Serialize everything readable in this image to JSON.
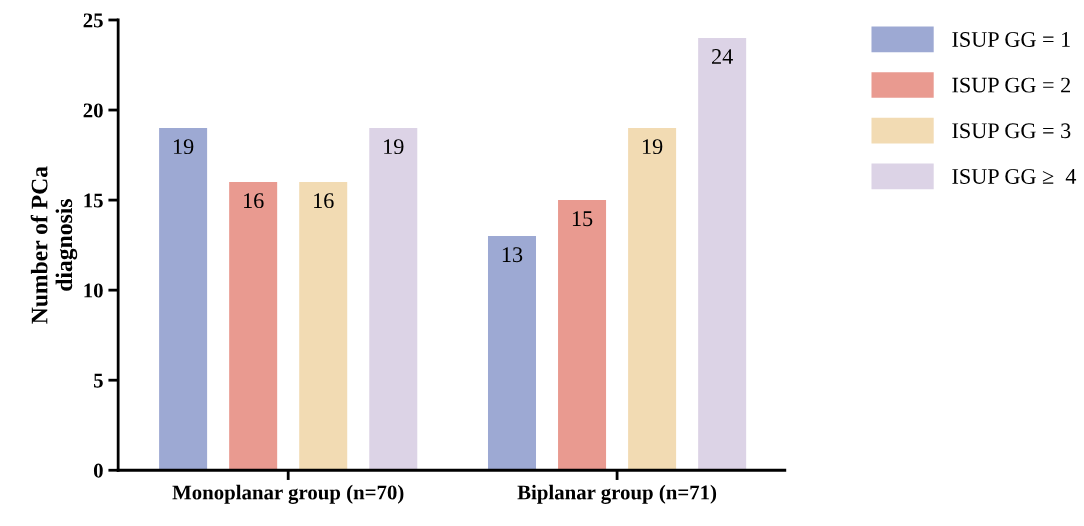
{
  "chart_data": {
    "type": "bar",
    "ylabel": "Number of PCa\ndiagnosis",
    "categories": [
      "Monoplanar group (n=70)",
      "Biplanar group (n=71)"
    ],
    "series": [
      {
        "name": "ISUP GG = 1",
        "color": "#9da9d3",
        "values": [
          19,
          13
        ]
      },
      {
        "name": "ISUP GG = 2",
        "color": "#e99a90",
        "values": [
          16,
          15
        ]
      },
      {
        "name": "ISUP GG = 3",
        "color": "#f2dbb3",
        "values": [
          16,
          19
        ]
      },
      {
        "name": "ISUP GG ≥  4",
        "color": "#dcd3e6",
        "values": [
          19,
          24
        ]
      }
    ],
    "ylim": [
      0,
      25
    ],
    "yticks": [
      0,
      5,
      10,
      15,
      20,
      25
    ],
    "data_labels": true,
    "grid": false,
    "legend": "top right"
  }
}
